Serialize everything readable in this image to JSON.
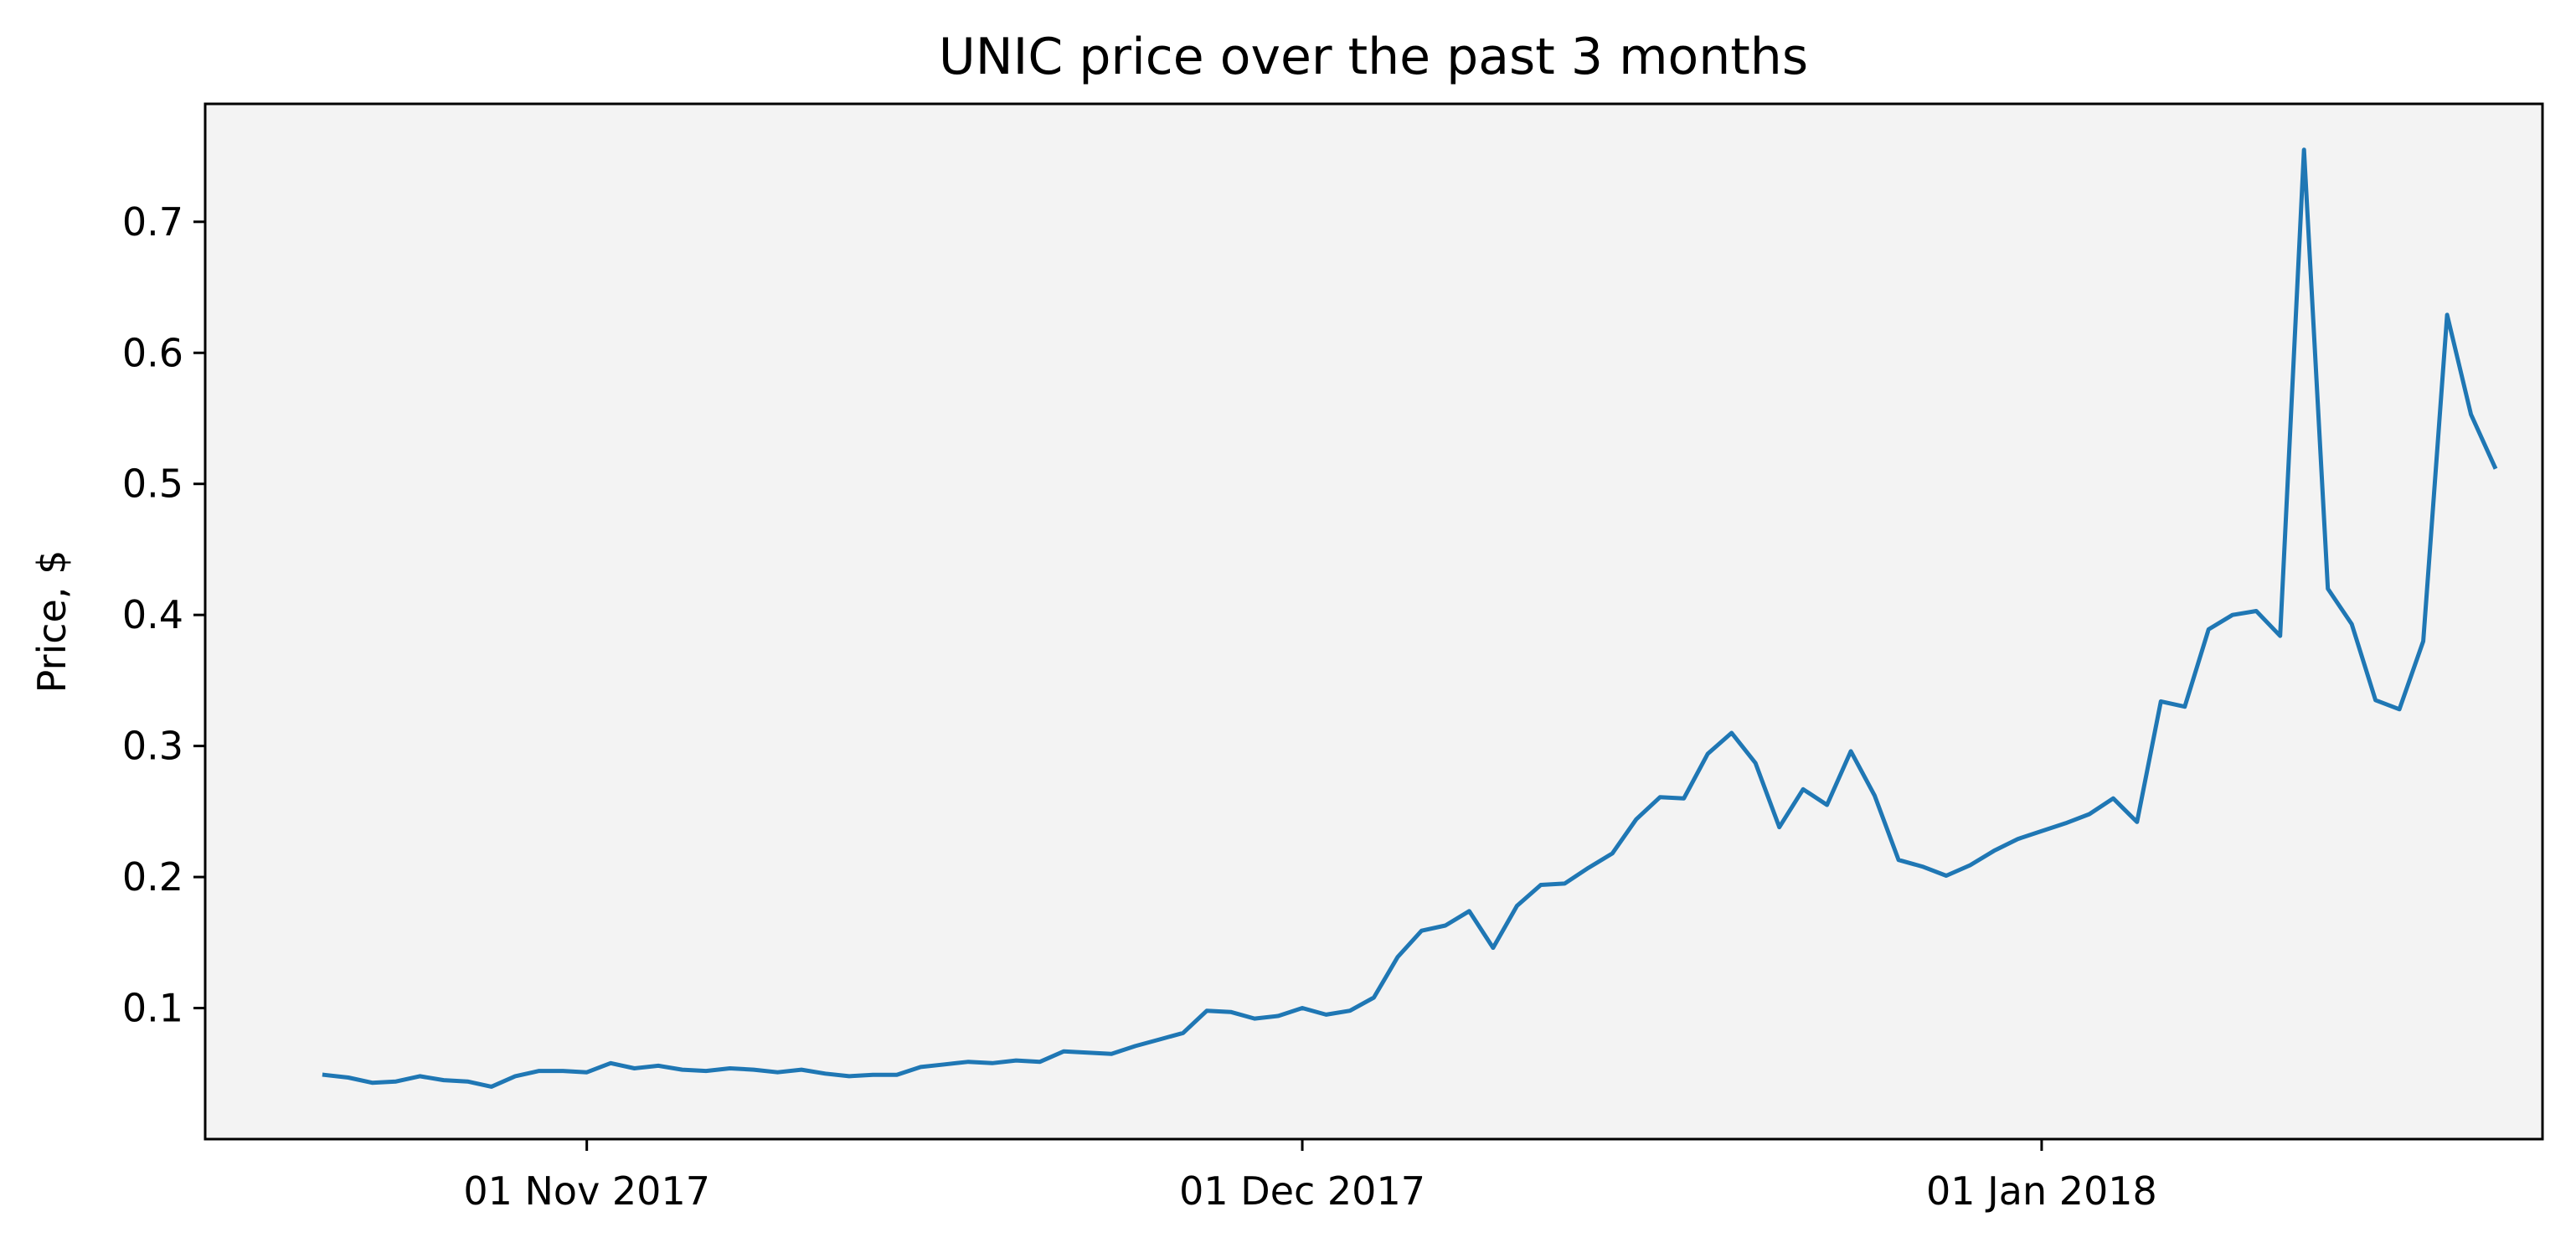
{
  "chart_data": {
    "type": "line",
    "title": "UNIC price over the past 3 months",
    "xlabel": "",
    "ylabel": "Price, $",
    "grid": false,
    "colors": {
      "plot_background": "#f3f3f3",
      "line": "#1f77b4"
    },
    "xlim": [
      "2017-10-16",
      "2018-01-22"
    ],
    "ylim": [
      0.0,
      0.79
    ],
    "x_ticks": [
      {
        "date": "2017-11-01",
        "label": "01 Nov 2017"
      },
      {
        "date": "2017-12-01",
        "label": "01 Dec 2017"
      },
      {
        "date": "2018-01-01",
        "label": "01 Jan 2018"
      }
    ],
    "y_ticks": [
      {
        "value": 0.1,
        "label": "0.1"
      },
      {
        "value": 0.2,
        "label": "0.2"
      },
      {
        "value": 0.3,
        "label": "0.3"
      },
      {
        "value": 0.4,
        "label": "0.4"
      },
      {
        "value": 0.5,
        "label": "0.5"
      },
      {
        "value": 0.6,
        "label": "0.6"
      },
      {
        "value": 0.7,
        "label": "0.7"
      }
    ],
    "series": [
      {
        "x": [
          "2017-10-21",
          "2017-10-22",
          "2017-10-23",
          "2017-10-24",
          "2017-10-25",
          "2017-10-26",
          "2017-10-27",
          "2017-10-28",
          "2017-10-29",
          "2017-10-30",
          "2017-10-31",
          "2017-11-01",
          "2017-11-02",
          "2017-11-03",
          "2017-11-04",
          "2017-11-05",
          "2017-11-06",
          "2017-11-07",
          "2017-11-08",
          "2017-11-09",
          "2017-11-10",
          "2017-11-11",
          "2017-11-12",
          "2017-11-13",
          "2017-11-14",
          "2017-11-15",
          "2017-11-16",
          "2017-11-17",
          "2017-11-18",
          "2017-11-19",
          "2017-11-20",
          "2017-11-21",
          "2017-11-22",
          "2017-11-23",
          "2017-11-24",
          "2017-11-25",
          "2017-11-26",
          "2017-11-27",
          "2017-11-28",
          "2017-11-29",
          "2017-11-30",
          "2017-12-01",
          "2017-12-02",
          "2017-12-03",
          "2017-12-04",
          "2017-12-05",
          "2017-12-06",
          "2017-12-07",
          "2017-12-08",
          "2017-12-09",
          "2017-12-10",
          "2017-12-11",
          "2017-12-12",
          "2017-12-13",
          "2017-12-14",
          "2017-12-15",
          "2017-12-16",
          "2017-12-17",
          "2017-12-18",
          "2017-12-19",
          "2017-12-20",
          "2017-12-21",
          "2017-12-22",
          "2017-12-23",
          "2017-12-24",
          "2017-12-25",
          "2017-12-26",
          "2017-12-27",
          "2017-12-28",
          "2017-12-29",
          "2017-12-30",
          "2017-12-31",
          "2018-01-01",
          "2018-01-02",
          "2018-01-03",
          "2018-01-04",
          "2018-01-05",
          "2018-01-06",
          "2018-01-07",
          "2018-01-08",
          "2018-01-09",
          "2018-01-10",
          "2018-01-11",
          "2018-01-12",
          "2018-01-13",
          "2018-01-14",
          "2018-01-15",
          "2018-01-16",
          "2018-01-17",
          "2018-01-18",
          "2018-01-19",
          "2018-01-20"
        ],
        "values": [
          0.049,
          0.047,
          0.043,
          0.044,
          0.048,
          0.045,
          0.044,
          0.04,
          0.048,
          0.052,
          0.052,
          0.051,
          0.058,
          0.054,
          0.056,
          0.053,
          0.052,
          0.054,
          0.053,
          0.051,
          0.053,
          0.05,
          0.048,
          0.049,
          0.049,
          0.055,
          0.057,
          0.059,
          0.058,
          0.06,
          0.059,
          0.067,
          0.066,
          0.065,
          0.071,
          0.076,
          0.081,
          0.098,
          0.097,
          0.092,
          0.094,
          0.1,
          0.095,
          0.098,
          0.108,
          0.139,
          0.159,
          0.163,
          0.174,
          0.146,
          0.178,
          0.194,
          0.195,
          0.207,
          0.218,
          0.244,
          0.261,
          0.26,
          0.294,
          0.31,
          0.287,
          0.238,
          0.267,
          0.255,
          0.296,
          0.262,
          0.213,
          0.208,
          0.201,
          0.209,
          0.22,
          0.229,
          0.235,
          0.241,
          0.248,
          0.26,
          0.242,
          0.334,
          0.33,
          0.389,
          0.4,
          0.403,
          0.384,
          0.755,
          0.42,
          0.393,
          0.335,
          0.328,
          0.38,
          0.629,
          0.553,
          0.513
        ]
      }
    ]
  }
}
